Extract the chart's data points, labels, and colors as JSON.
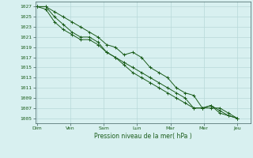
{
  "title": "",
  "xlabel": "Pression niveau de la mer( hPa )",
  "ylabel": "",
  "background_color": "#d8f0f0",
  "grid_color": "#b8d8d8",
  "line_color": "#1a5c1a",
  "ylim": [
    1004,
    1028
  ],
  "days": [
    "Dim",
    "Ven",
    "Sam",
    "Lun",
    "Mar",
    "Mer",
    "Jeu"
  ],
  "series1": [
    1027,
    1027,
    1026,
    1025,
    1024,
    1023,
    1022,
    1021,
    1019.5,
    1019,
    1017.5,
    1018,
    1017,
    1015,
    1014,
    1013,
    1011,
    1010,
    1009.5,
    1007,
    1007,
    1007,
    1006,
    1005
  ],
  "series2": [
    1027,
    1027,
    1025,
    1023.5,
    1022,
    1021,
    1021,
    1020,
    1018,
    1017,
    1016,
    1015,
    1014,
    1013,
    1012,
    1011,
    1010,
    1009,
    1007,
    1007,
    1007.5,
    1006,
    1005.5,
    1005
  ],
  "series3": [
    1027,
    1026.5,
    1024,
    1022.5,
    1021.5,
    1020.5,
    1020.5,
    1019.5,
    1018,
    1017,
    1015.5,
    1014,
    1013,
    1012,
    1011,
    1010,
    1009,
    1008,
    1007,
    1007,
    1007.5,
    1006.5,
    1005.5,
    1005
  ],
  "n_points": 24,
  "label_fontsize": 4.5,
  "xlabel_fontsize": 5.5,
  "marker_size": 2.5,
  "line_width": 0.7
}
